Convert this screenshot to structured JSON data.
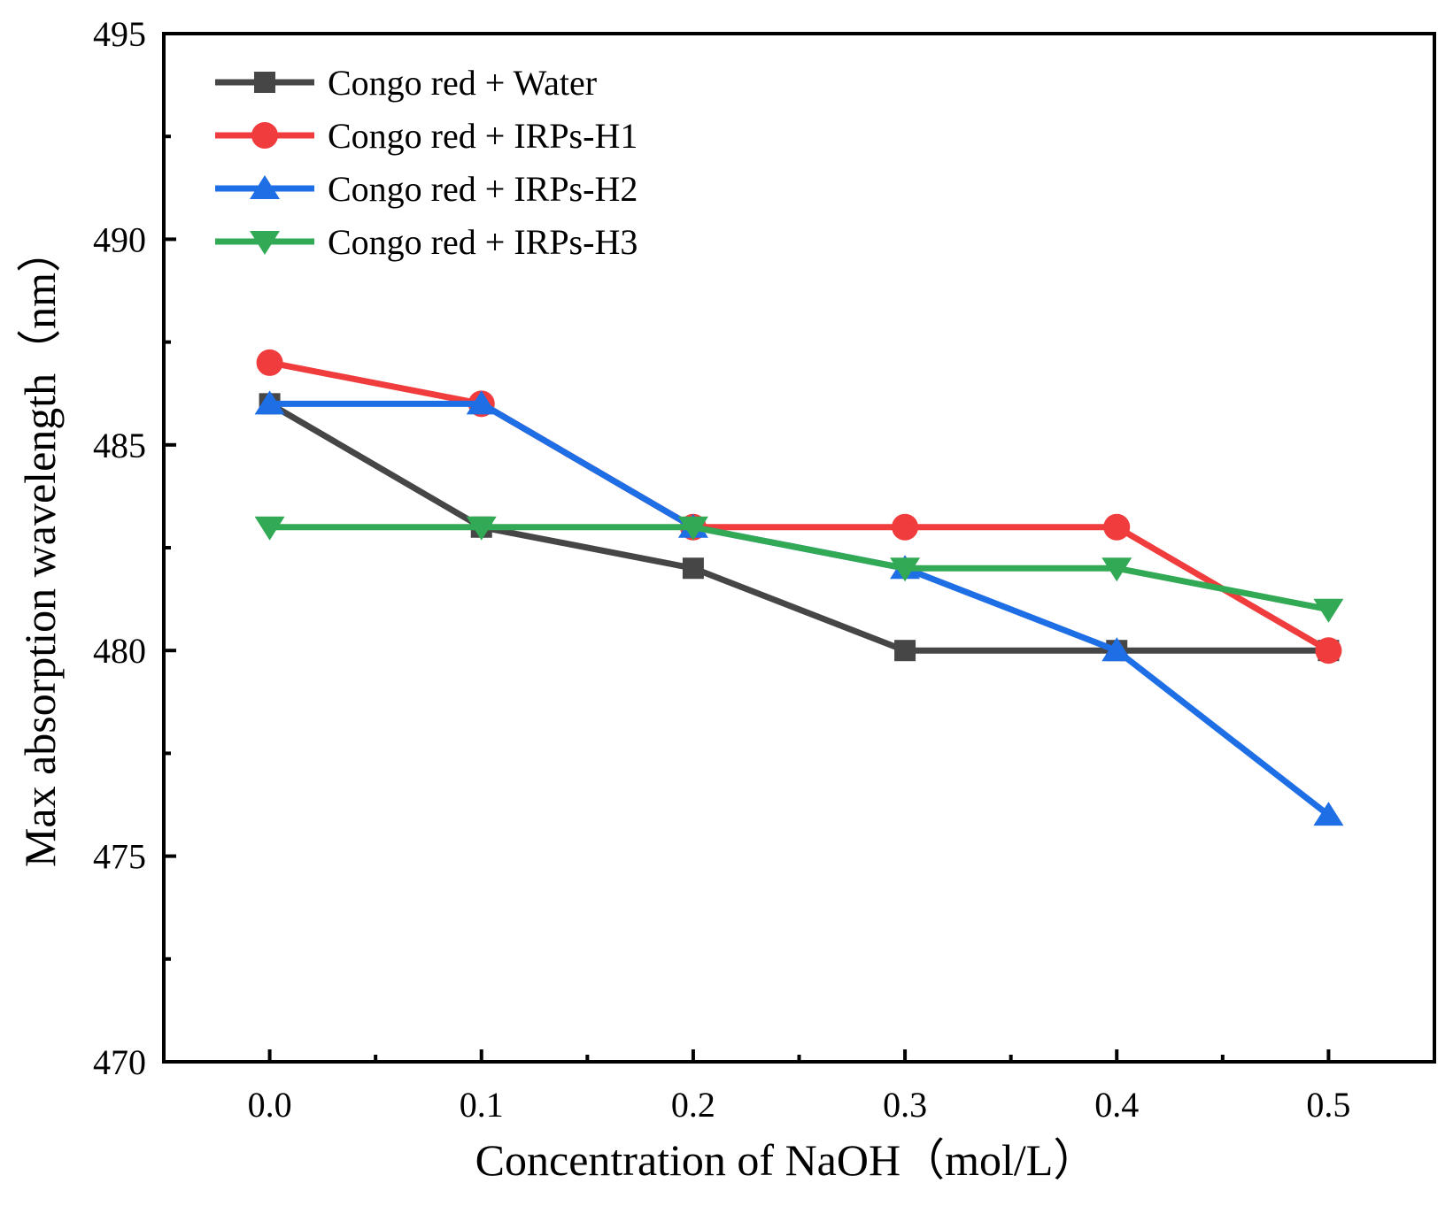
{
  "chart_data": {
    "type": "line",
    "title": "",
    "xlabel": "Concentration of NaOH（mol/L）",
    "ylabel": "Max absorption wavelength（nm）",
    "x": [
      0.0,
      0.1,
      0.2,
      0.3,
      0.4,
      0.5
    ],
    "x_tick_labels": [
      "0.0",
      "0.1",
      "0.2",
      "0.3",
      "0.4",
      "0.5"
    ],
    "xlim": [
      -0.05,
      0.55
    ],
    "ylim": [
      470,
      495
    ],
    "y_ticks": [
      470,
      475,
      480,
      485,
      490,
      495
    ],
    "y_tick_labels": [
      "470",
      "475",
      "480",
      "485",
      "490",
      "495"
    ],
    "grid": false,
    "legend_position": "top-left",
    "series": [
      {
        "name": "Congo red + Water",
        "color": "#464646",
        "marker": "square",
        "values": [
          486,
          483,
          482,
          480,
          480,
          480
        ]
      },
      {
        "name": "Congo red + IRPs-H1",
        "color": "#f03c3c",
        "marker": "circle",
        "values": [
          487,
          486,
          483,
          483,
          483,
          480
        ]
      },
      {
        "name": "Congo red + IRPs-H2",
        "color": "#1e6ee6",
        "marker": "triangle-up",
        "values": [
          486,
          486,
          483,
          482,
          480,
          476
        ]
      },
      {
        "name": "Congo red + IRPs-H3",
        "color": "#32aa55",
        "marker": "triangle-down",
        "values": [
          483,
          483,
          483,
          482,
          482,
          481
        ]
      }
    ]
  }
}
